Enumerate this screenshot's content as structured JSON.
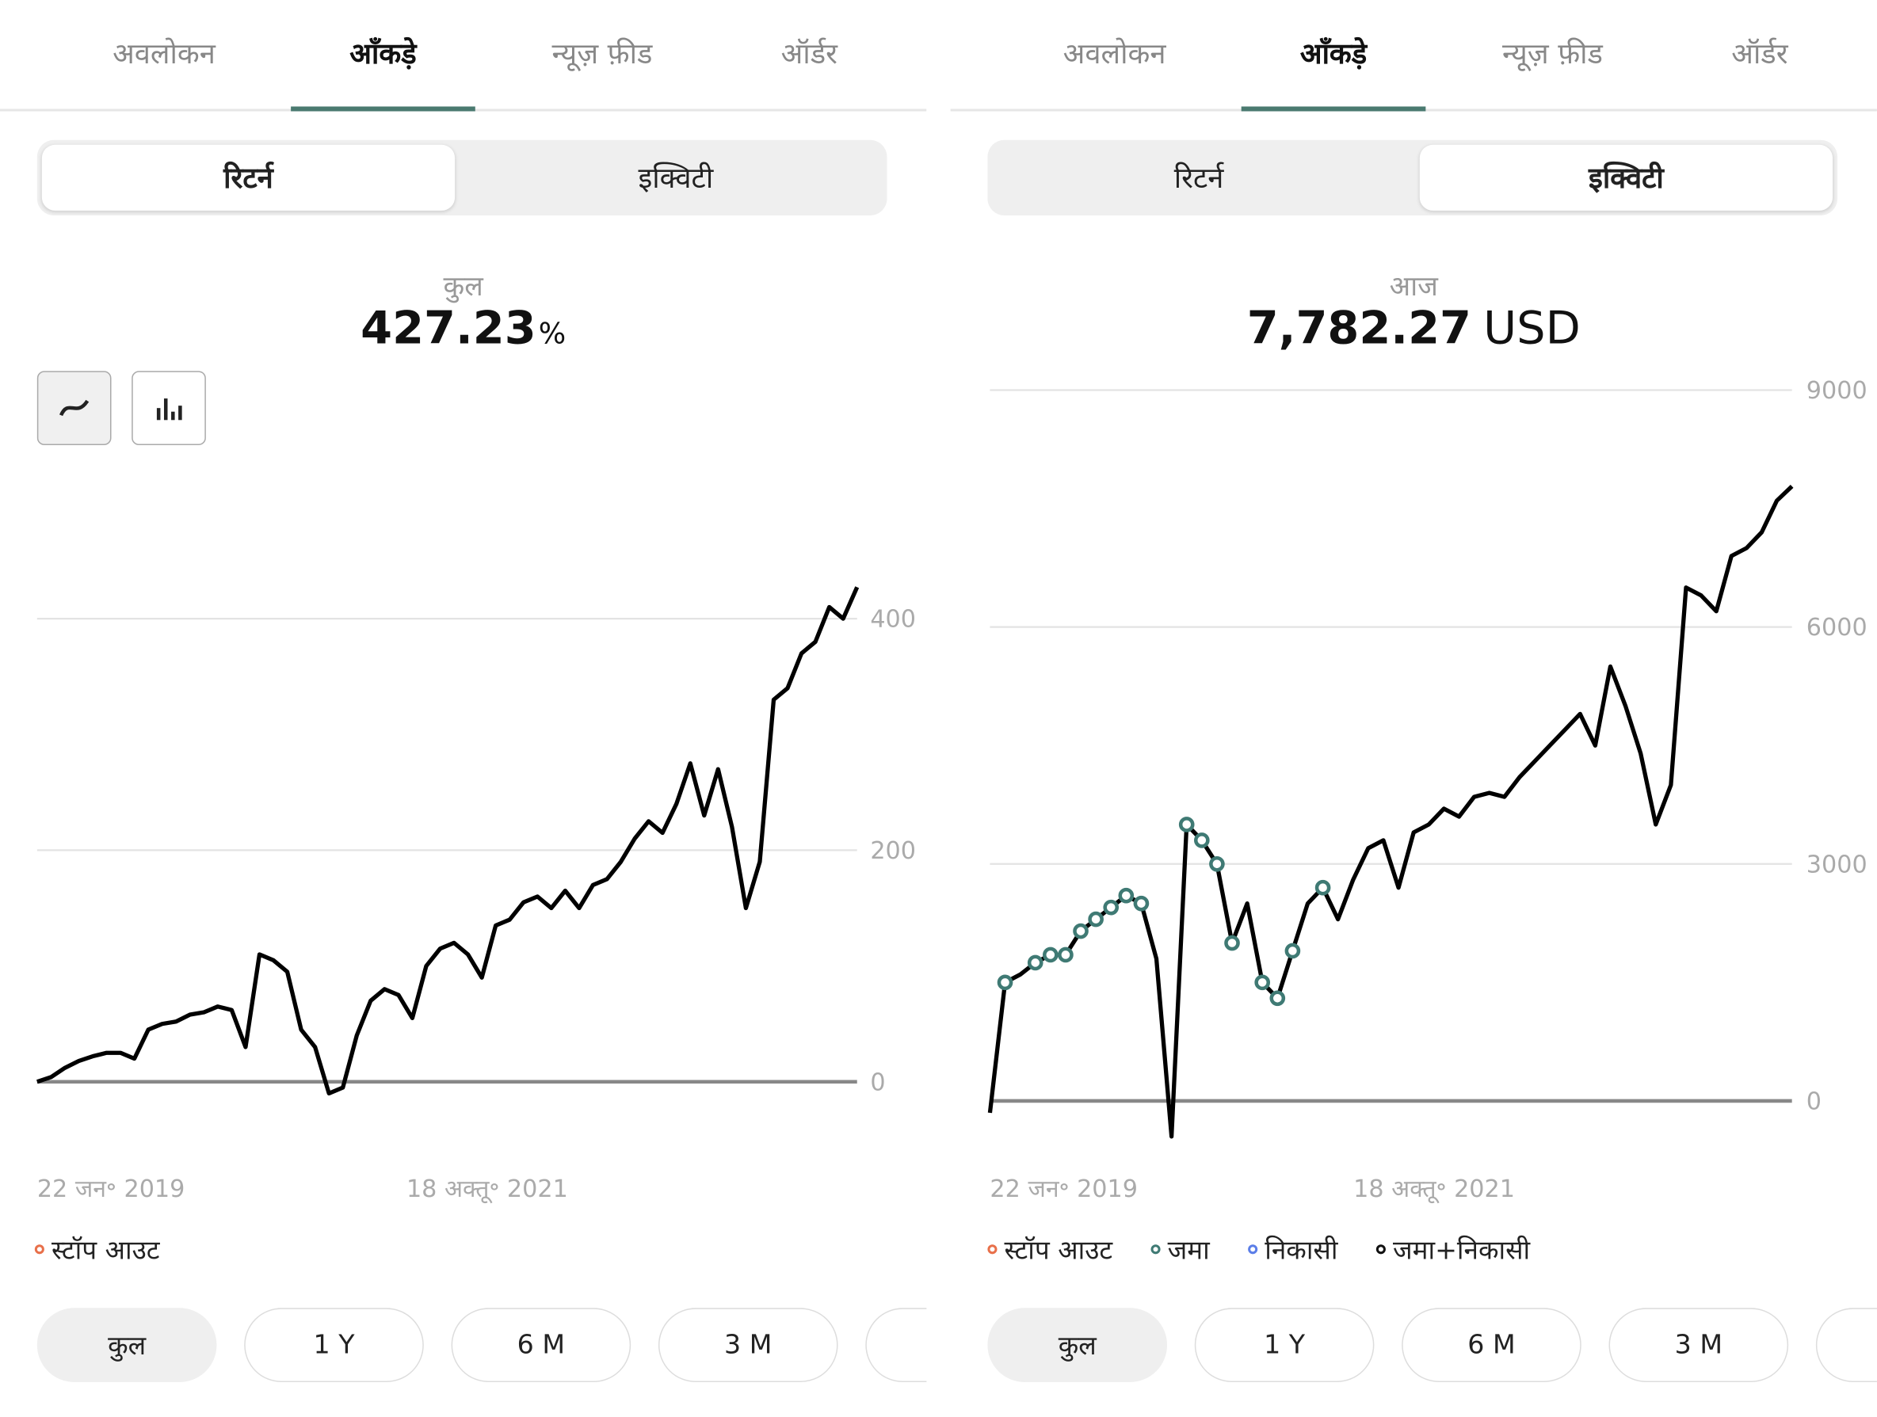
{
  "panels": [
    {
      "tabs": [
        "अवलोकन",
        "आँकड़े",
        "न्यूज़ फ़ीड",
        "ऑर्डर"
      ],
      "active_tab": 1,
      "segments": [
        "रिटर्न",
        "इक्विटी"
      ],
      "active_segment": 0,
      "summary_label": "कुल",
      "summary_value": "427.23",
      "summary_unit": "%",
      "ranges": [
        "कुल",
        "1 Y",
        "6 M",
        "3 M"
      ],
      "active_range": 0
    },
    {
      "tabs": [
        "अवलोकन",
        "आँकड़े",
        "न्यूज़ फ़ीड",
        "ऑर्डर"
      ],
      "active_tab": 1,
      "segments": [
        "रिटर्न",
        "इक्विटी"
      ],
      "active_segment": 1,
      "summary_label": "आज",
      "summary_value": "7,782.27",
      "summary_unit": "USD",
      "ranges": [
        "कुल",
        "1 Y",
        "6 M",
        "3 M"
      ],
      "active_range": 0
    }
  ],
  "chart_data": [
    {
      "type": "line",
      "color": "#000000",
      "grid": true,
      "categories": [
        "22 जन॰ 2019",
        null,
        null,
        null,
        null,
        null,
        null,
        null,
        null,
        null,
        null,
        null,
        null,
        null,
        null,
        null,
        null,
        null,
        null,
        null,
        null,
        null,
        null,
        null,
        null,
        null,
        null,
        null,
        null,
        null,
        null,
        null,
        "18 अक्तू॰ 2021",
        null,
        null,
        null,
        null,
        null,
        null,
        null,
        null,
        null,
        null,
        null,
        null,
        null,
        null,
        null,
        null,
        null,
        null,
        null,
        null,
        null,
        null,
        null,
        null,
        null,
        null,
        null
      ],
      "values": [
        0,
        4,
        12,
        18,
        22,
        25,
        25,
        20,
        45,
        50,
        52,
        58,
        60,
        65,
        62,
        30,
        110,
        105,
        95,
        45,
        30,
        -10,
        -5,
        40,
        70,
        80,
        75,
        55,
        100,
        115,
        120,
        110,
        90,
        135,
        140,
        155,
        160,
        150,
        165,
        150,
        170,
        175,
        190,
        210,
        225,
        215,
        240,
        275,
        230,
        270,
        220,
        150,
        190,
        330,
        340,
        370,
        380,
        410,
        400,
        427.23
      ],
      "ylim": [
        -40,
        480
      ],
      "yticks": [
        0,
        200,
        400
      ],
      "series": [
        {
          "name": "स्टॉप आउट",
          "color": "#e8704a",
          "values": [
            null,
            null,
            null,
            null,
            null,
            null,
            null,
            null,
            null,
            null,
            null,
            null,
            null,
            null,
            null,
            null,
            null,
            null,
            null,
            null,
            null,
            null,
            null,
            null,
            null,
            null,
            null,
            null,
            null,
            null,
            null,
            null,
            null,
            null,
            null,
            null,
            null,
            null,
            null,
            null,
            null,
            null,
            null,
            null,
            null,
            null,
            null,
            null,
            null,
            null,
            null,
            null,
            null,
            null,
            null,
            null,
            null,
            null,
            null,
            null
          ]
        }
      ]
    },
    {
      "type": "line",
      "color": "#000000",
      "grid": true,
      "categories": [
        "22 जन॰ 2019",
        null,
        null,
        null,
        null,
        null,
        null,
        null,
        null,
        null,
        null,
        null,
        null,
        null,
        null,
        null,
        null,
        null,
        null,
        null,
        null,
        null,
        null,
        null,
        null,
        null,
        null,
        null,
        null,
        "18 अक्तू॰ 2021",
        null,
        null,
        null,
        null,
        null,
        null,
        null,
        null,
        null,
        null,
        null,
        null,
        null,
        null,
        null,
        null,
        null,
        null,
        null,
        null,
        null,
        null,
        null,
        null
      ],
      "values": [
        -150,
        1500,
        1600,
        1750,
        1850,
        1850,
        2150,
        2300,
        2450,
        2600,
        2500,
        1800,
        -450,
        3500,
        3300,
        3000,
        2000,
        2500,
        1500,
        1300,
        1900,
        2500,
        2700,
        2300,
        2800,
        3200,
        3300,
        2700,
        3400,
        3500,
        3700,
        3600,
        3850,
        3900,
        3850,
        4100,
        4300,
        4500,
        4700,
        4900,
        4500,
        5500,
        5000,
        4400,
        3500,
        4000,
        6500,
        6400,
        6200,
        6900,
        7000,
        7200,
        7600,
        7782.27
      ],
      "ylim": [
        -600,
        9000
      ],
      "yticks": [
        0,
        3000,
        6000,
        9000
      ],
      "series": [
        {
          "name": "स्टॉप आउट",
          "color": "#e8704a",
          "values": [
            null,
            null,
            null,
            null,
            null,
            null,
            null,
            null,
            null,
            null,
            null,
            null,
            null,
            null,
            null,
            null,
            null,
            null,
            null,
            null,
            null,
            null,
            null,
            null,
            null,
            null,
            null,
            null,
            null,
            null,
            null,
            null,
            null,
            null,
            null,
            null,
            null,
            null,
            null,
            null,
            null,
            null,
            null,
            null,
            null,
            null,
            null,
            null,
            null,
            null,
            null,
            null,
            null,
            null
          ]
        },
        {
          "name": "जमा",
          "color": "#3f7a74",
          "values": [
            null,
            1500,
            null,
            1750,
            1850,
            1850,
            2150,
            2300,
            2450,
            2600,
            2500,
            null,
            null,
            3500,
            3300,
            3000,
            2000,
            null,
            1500,
            1300,
            1900,
            null,
            2700,
            null,
            null,
            null,
            null,
            null,
            null,
            null,
            null,
            null,
            null,
            null,
            null,
            null,
            null,
            null,
            null,
            null,
            null,
            null,
            null,
            null,
            null,
            null,
            null,
            null,
            null,
            null,
            null,
            null,
            null,
            null
          ]
        },
        {
          "name": "निकासी",
          "color": "#5b7ee8",
          "values": [
            null,
            null,
            null,
            null,
            null,
            null,
            null,
            null,
            null,
            null,
            null,
            null,
            null,
            null,
            null,
            null,
            null,
            null,
            null,
            null,
            null,
            null,
            null,
            null,
            null,
            null,
            null,
            null,
            null,
            null,
            null,
            null,
            null,
            null,
            null,
            null,
            null,
            null,
            null,
            null,
            null,
            null,
            null,
            null,
            null,
            null,
            null,
            null,
            null,
            null,
            null,
            null,
            null,
            null
          ]
        },
        {
          "name": "जमा+निकासी",
          "color": "#111111",
          "values": [
            null,
            null,
            null,
            null,
            null,
            null,
            null,
            null,
            null,
            null,
            null,
            null,
            null,
            null,
            null,
            null,
            null,
            null,
            null,
            null,
            null,
            null,
            null,
            null,
            null,
            null,
            null,
            null,
            null,
            null,
            null,
            null,
            null,
            null,
            null,
            null,
            null,
            null,
            null,
            null,
            null,
            null,
            null,
            null,
            null,
            null,
            null,
            null,
            null,
            null,
            null,
            null,
            null,
            null
          ]
        }
      ]
    }
  ]
}
